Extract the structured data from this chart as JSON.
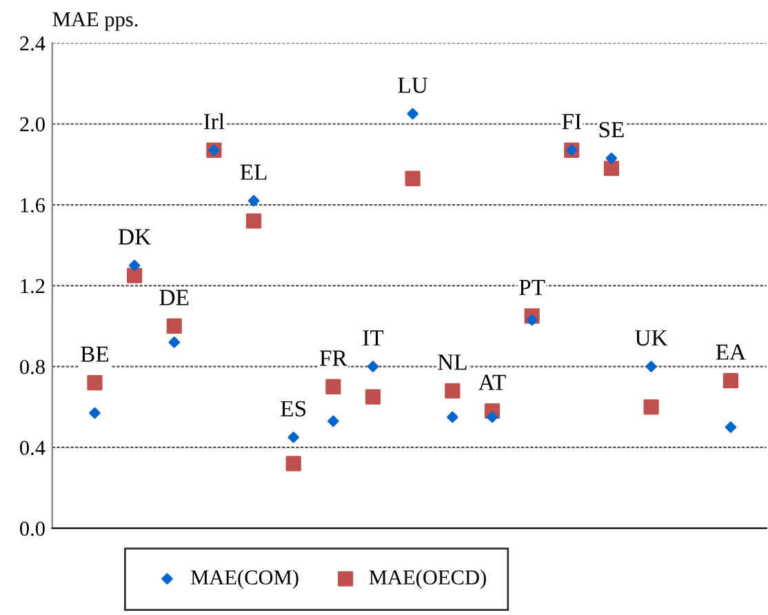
{
  "chart_data": {
    "type": "scatter",
    "ylabel": "MAE pps.",
    "categories": [
      "BE",
      "DK",
      "DE",
      "Irl",
      "EL",
      "ES",
      "FR",
      "IT",
      "LU",
      "NL",
      "AT",
      "PT",
      "FI",
      "SE",
      "UK",
      null,
      "EA"
    ],
    "series": [
      {
        "name": "MAE(COM)",
        "color": "#0066cc",
        "marker": "diamond",
        "values": [
          0.57,
          1.3,
          0.92,
          1.87,
          1.62,
          0.45,
          0.53,
          0.8,
          2.05,
          0.55,
          0.55,
          1.03,
          1.87,
          1.83,
          0.8,
          null,
          0.5
        ]
      },
      {
        "name": "MAE(OECD)",
        "color": "#c0504d",
        "marker": "square",
        "values": [
          0.72,
          1.25,
          1.0,
          1.87,
          1.52,
          0.32,
          0.7,
          0.65,
          1.73,
          0.68,
          0.58,
          1.05,
          1.87,
          1.78,
          0.6,
          null,
          0.73
        ]
      }
    ],
    "ylim": [
      0,
      2.4
    ],
    "yticks": [
      {
        "value": 0,
        "label": "0.0"
      },
      0.4,
      0.8,
      1.2,
      1.6,
      {
        "value": 2,
        "label": "2.0"
      },
      2.4
    ],
    "grid": "y",
    "legend": "bottom"
  }
}
